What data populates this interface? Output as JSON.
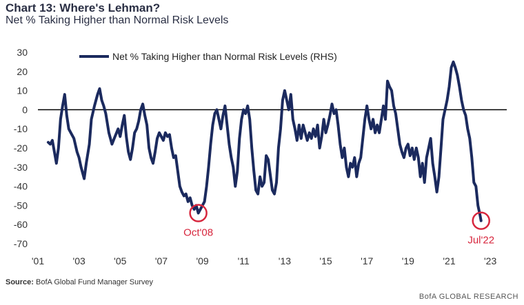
{
  "title": "Chart 13: Where's Lehman?",
  "subtitle": "Net % Taking Higher than Normal Risk Levels",
  "source_label": "Source:",
  "source_text": "BofA Global Fund Manager Survey",
  "brand": "BofA GLOBAL RESEARCH",
  "colors": {
    "line": "#1b2a5e",
    "zero": "#000000",
    "annotation": "#d7263d",
    "axis_text": "#333333"
  },
  "chart_data": {
    "type": "line",
    "legend": "Net % Taking Higher than Normal Risk Levels (RHS)",
    "legend_position": "top",
    "grid": false,
    "xlim": [
      2001,
      2023.8
    ],
    "ylim": [
      -70,
      30
    ],
    "yticks": [
      30,
      20,
      10,
      0,
      -10,
      -20,
      -30,
      -40,
      -50,
      -60,
      -70
    ],
    "xticks": [
      {
        "value": 2001,
        "label": "'01"
      },
      {
        "value": 2003,
        "label": "'03"
      },
      {
        "value": 2005,
        "label": "'05"
      },
      {
        "value": 2007,
        "label": "'07"
      },
      {
        "value": 2009,
        "label": "'09"
      },
      {
        "value": 2011,
        "label": "'11"
      },
      {
        "value": 2013,
        "label": "'13"
      },
      {
        "value": 2015,
        "label": "'15"
      },
      {
        "value": 2017,
        "label": "'17"
      },
      {
        "value": 2019,
        "label": "'19"
      },
      {
        "value": 2021,
        "label": "'21"
      },
      {
        "value": 2023,
        "label": "'23"
      }
    ],
    "annotations": [
      {
        "label": "Oct'08",
        "x": 2008.8,
        "y": -54
      },
      {
        "label": "Jul'22",
        "x": 2022.55,
        "y": -58
      }
    ],
    "series": [
      {
        "name": "Net % Taking Higher than Normal Risk Levels (RHS)",
        "points": [
          [
            2001.5,
            -17
          ],
          [
            2001.6,
            -18
          ],
          [
            2001.7,
            -16
          ],
          [
            2001.8,
            -22
          ],
          [
            2001.9,
            -28
          ],
          [
            2002.0,
            -20
          ],
          [
            2002.1,
            -5
          ],
          [
            2002.2,
            2
          ],
          [
            2002.3,
            8
          ],
          [
            2002.4,
            -3
          ],
          [
            2002.5,
            -10
          ],
          [
            2002.6,
            -12
          ],
          [
            2002.75,
            -15
          ],
          [
            2002.9,
            -22
          ],
          [
            2003.0,
            -25
          ],
          [
            2003.1,
            -30
          ],
          [
            2003.25,
            -36
          ],
          [
            2003.35,
            -28
          ],
          [
            2003.5,
            -18
          ],
          [
            2003.6,
            -5
          ],
          [
            2003.75,
            2
          ],
          [
            2003.9,
            8
          ],
          [
            2004.0,
            11
          ],
          [
            2004.1,
            5
          ],
          [
            2004.2,
            2
          ],
          [
            2004.3,
            -2
          ],
          [
            2004.45,
            -12
          ],
          [
            2004.6,
            -18
          ],
          [
            2004.75,
            -14
          ],
          [
            2004.9,
            -10
          ],
          [
            2005.0,
            -14
          ],
          [
            2005.1,
            -8
          ],
          [
            2005.2,
            -3
          ],
          [
            2005.3,
            -14
          ],
          [
            2005.4,
            -22
          ],
          [
            2005.5,
            -26
          ],
          [
            2005.6,
            -20
          ],
          [
            2005.7,
            -12
          ],
          [
            2005.8,
            -10
          ],
          [
            2005.9,
            -6
          ],
          [
            2006.0,
            0
          ],
          [
            2006.1,
            3
          ],
          [
            2006.2,
            -3
          ],
          [
            2006.3,
            -8
          ],
          [
            2006.4,
            -20
          ],
          [
            2006.5,
            -25
          ],
          [
            2006.6,
            -28
          ],
          [
            2006.7,
            -22
          ],
          [
            2006.8,
            -15
          ],
          [
            2006.9,
            -12
          ],
          [
            2007.0,
            -14
          ],
          [
            2007.1,
            -16
          ],
          [
            2007.2,
            -12
          ],
          [
            2007.3,
            -14
          ],
          [
            2007.4,
            -13
          ],
          [
            2007.5,
            -20
          ],
          [
            2007.6,
            -25
          ],
          [
            2007.7,
            -24
          ],
          [
            2007.8,
            -32
          ],
          [
            2007.9,
            -40
          ],
          [
            2008.0,
            -43
          ],
          [
            2008.1,
            -45
          ],
          [
            2008.2,
            -44
          ],
          [
            2008.3,
            -48
          ],
          [
            2008.4,
            -46
          ],
          [
            2008.5,
            -50
          ],
          [
            2008.6,
            -52
          ],
          [
            2008.7,
            -50
          ],
          [
            2008.8,
            -54
          ],
          [
            2008.9,
            -52
          ],
          [
            2009.0,
            -50
          ],
          [
            2009.1,
            -48
          ],
          [
            2009.2,
            -40
          ],
          [
            2009.3,
            -30
          ],
          [
            2009.4,
            -18
          ],
          [
            2009.5,
            -8
          ],
          [
            2009.6,
            -2
          ],
          [
            2009.7,
            0
          ],
          [
            2009.8,
            -5
          ],
          [
            2009.9,
            -10
          ],
          [
            2010.0,
            -3
          ],
          [
            2010.1,
            2
          ],
          [
            2010.2,
            -8
          ],
          [
            2010.3,
            -18
          ],
          [
            2010.4,
            -25
          ],
          [
            2010.5,
            -30
          ],
          [
            2010.6,
            -40
          ],
          [
            2010.7,
            -32
          ],
          [
            2010.8,
            -15
          ],
          [
            2010.9,
            -5
          ],
          [
            2011.0,
            0
          ],
          [
            2011.1,
            -2
          ],
          [
            2011.2,
            2
          ],
          [
            2011.3,
            -5
          ],
          [
            2011.4,
            -20
          ],
          [
            2011.5,
            -32
          ],
          [
            2011.6,
            -42
          ],
          [
            2011.7,
            -44
          ],
          [
            2011.8,
            -35
          ],
          [
            2011.9,
            -40
          ],
          [
            2012.0,
            -38
          ],
          [
            2012.1,
            -24
          ],
          [
            2012.2,
            -26
          ],
          [
            2012.3,
            -34
          ],
          [
            2012.4,
            -42
          ],
          [
            2012.5,
            -44
          ],
          [
            2012.6,
            -38
          ],
          [
            2012.7,
            -20
          ],
          [
            2012.8,
            -10
          ],
          [
            2012.9,
            5
          ],
          [
            2013.0,
            10
          ],
          [
            2013.1,
            5
          ],
          [
            2013.2,
            0
          ],
          [
            2013.3,
            8
          ],
          [
            2013.4,
            -5
          ],
          [
            2013.5,
            -10
          ],
          [
            2013.6,
            -16
          ],
          [
            2013.7,
            -8
          ],
          [
            2013.8,
            -15
          ],
          [
            2013.9,
            -8
          ],
          [
            2014.0,
            -12
          ],
          [
            2014.1,
            -16
          ],
          [
            2014.2,
            -12
          ],
          [
            2014.3,
            -15
          ],
          [
            2014.4,
            -10
          ],
          [
            2014.5,
            -14
          ],
          [
            2014.6,
            -8
          ],
          [
            2014.7,
            -20
          ],
          [
            2014.8,
            -14
          ],
          [
            2014.9,
            -5
          ],
          [
            2015.0,
            -12
          ],
          [
            2015.1,
            -8
          ],
          [
            2015.2,
            -3
          ],
          [
            2015.3,
            3
          ],
          [
            2015.4,
            -2
          ],
          [
            2015.5,
            0
          ],
          [
            2015.6,
            -8
          ],
          [
            2015.7,
            -18
          ],
          [
            2015.8,
            -25
          ],
          [
            2015.9,
            -20
          ],
          [
            2016.0,
            -30
          ],
          [
            2016.1,
            -35
          ],
          [
            2016.2,
            -28
          ],
          [
            2016.3,
            -30
          ],
          [
            2016.4,
            -25
          ],
          [
            2016.5,
            -35
          ],
          [
            2016.6,
            -28
          ],
          [
            2016.7,
            -25
          ],
          [
            2016.8,
            -15
          ],
          [
            2016.9,
            -5
          ],
          [
            2017.0,
            2
          ],
          [
            2017.1,
            -5
          ],
          [
            2017.2,
            -10
          ],
          [
            2017.3,
            -5
          ],
          [
            2017.4,
            -12
          ],
          [
            2017.5,
            -8
          ],
          [
            2017.6,
            -12
          ],
          [
            2017.7,
            -5
          ],
          [
            2017.8,
            2
          ],
          [
            2017.9,
            -5
          ],
          [
            2018.0,
            15
          ],
          [
            2018.1,
            12
          ],
          [
            2018.2,
            10
          ],
          [
            2018.3,
            2
          ],
          [
            2018.4,
            -2
          ],
          [
            2018.5,
            -10
          ],
          [
            2018.6,
            -18
          ],
          [
            2018.7,
            -22
          ],
          [
            2018.8,
            -25
          ],
          [
            2018.9,
            -20
          ],
          [
            2019.0,
            -18
          ],
          [
            2019.1,
            -24
          ],
          [
            2019.2,
            -20
          ],
          [
            2019.3,
            -26
          ],
          [
            2019.4,
            -20
          ],
          [
            2019.5,
            -25
          ],
          [
            2019.6,
            -35
          ],
          [
            2019.7,
            -28
          ],
          [
            2019.8,
            -38
          ],
          [
            2019.9,
            -25
          ],
          [
            2020.0,
            -20
          ],
          [
            2020.1,
            -15
          ],
          [
            2020.2,
            -28
          ],
          [
            2020.3,
            -35
          ],
          [
            2020.4,
            -43
          ],
          [
            2020.5,
            -35
          ],
          [
            2020.6,
            -20
          ],
          [
            2020.7,
            -5
          ],
          [
            2020.8,
            0
          ],
          [
            2020.9,
            5
          ],
          [
            2021.0,
            12
          ],
          [
            2021.1,
            22
          ],
          [
            2021.2,
            25
          ],
          [
            2021.3,
            22
          ],
          [
            2021.4,
            18
          ],
          [
            2021.5,
            12
          ],
          [
            2021.6,
            5
          ],
          [
            2021.7,
            0
          ],
          [
            2021.8,
            -3
          ],
          [
            2021.9,
            -10
          ],
          [
            2022.0,
            -15
          ],
          [
            2022.1,
            -25
          ],
          [
            2022.2,
            -38
          ],
          [
            2022.3,
            -40
          ],
          [
            2022.4,
            -50
          ],
          [
            2022.5,
            -55
          ],
          [
            2022.55,
            -58
          ]
        ]
      }
    ]
  }
}
